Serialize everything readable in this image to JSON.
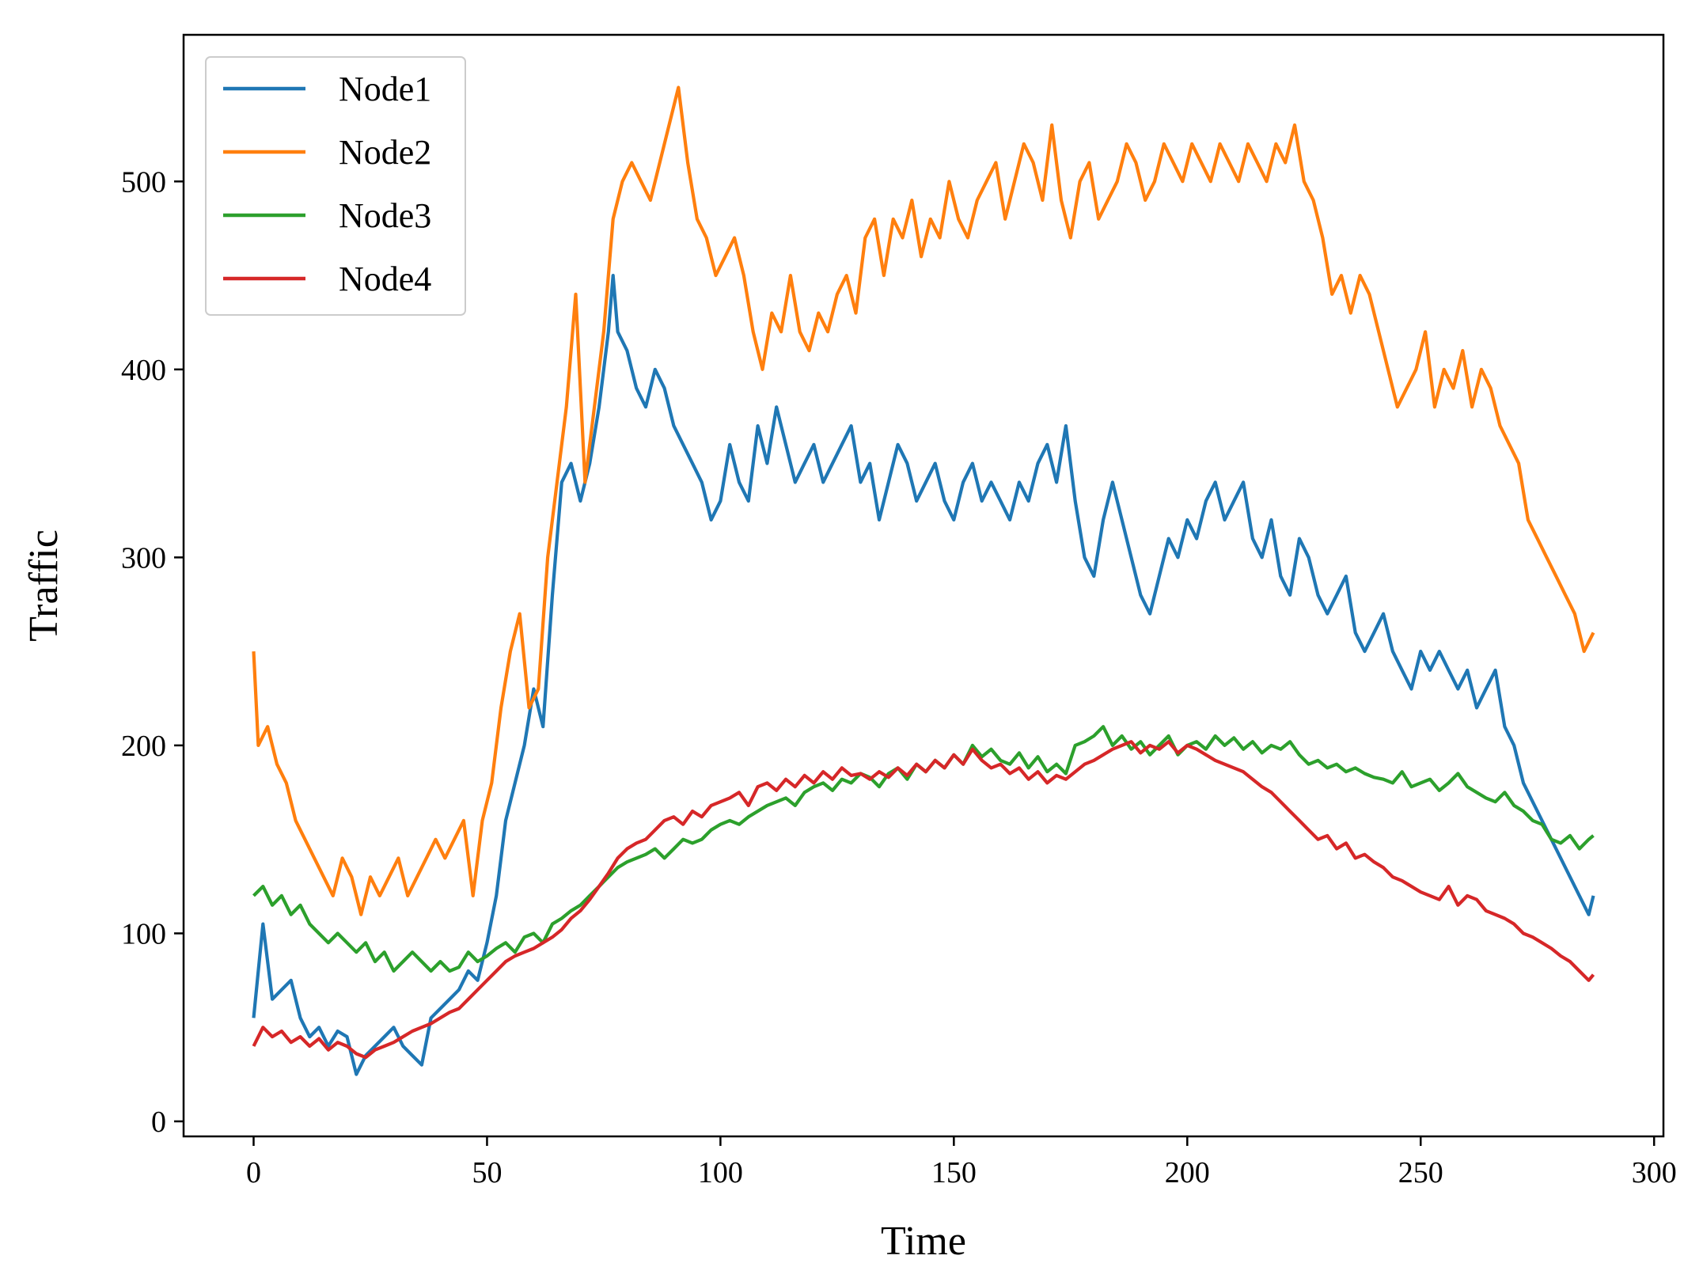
{
  "chart_data": {
    "type": "line",
    "title": "",
    "xlabel": "Time",
    "ylabel": "Traffic",
    "xlim": [
      -15,
      302
    ],
    "ylim": [
      -8,
      578
    ],
    "xticks": [
      0,
      50,
      100,
      150,
      200,
      250,
      300
    ],
    "yticks": [
      0,
      100,
      200,
      300,
      400,
      500
    ],
    "grid": false,
    "legend_position": "top-left",
    "series": [
      {
        "name": "Node1",
        "color": "#1f77b4",
        "x": [
          0,
          2,
          4,
          6,
          8,
          10,
          12,
          14,
          16,
          18,
          20,
          22,
          24,
          26,
          28,
          30,
          32,
          34,
          36,
          38,
          40,
          42,
          44,
          46,
          48,
          50,
          52,
          54,
          56,
          58,
          60,
          62,
          64,
          66,
          68,
          70,
          72,
          74,
          76,
          77,
          78,
          80,
          82,
          84,
          86,
          88,
          90,
          92,
          94,
          96,
          98,
          100,
          102,
          104,
          106,
          108,
          110,
          112,
          114,
          116,
          118,
          120,
          122,
          124,
          126,
          128,
          130,
          132,
          134,
          136,
          138,
          140,
          142,
          144,
          146,
          148,
          150,
          152,
          154,
          156,
          158,
          160,
          162,
          164,
          166,
          168,
          170,
          172,
          174,
          176,
          178,
          180,
          182,
          184,
          186,
          188,
          190,
          192,
          194,
          196,
          198,
          200,
          202,
          204,
          206,
          208,
          210,
          212,
          214,
          216,
          218,
          220,
          222,
          224,
          226,
          228,
          230,
          232,
          234,
          236,
          238,
          240,
          242,
          244,
          246,
          248,
          250,
          252,
          254,
          256,
          258,
          260,
          262,
          264,
          266,
          268,
          270,
          272,
          274,
          276,
          278,
          280,
          282,
          284,
          286,
          287
        ],
        "y": [
          55,
          105,
          65,
          70,
          75,
          55,
          45,
          50,
          40,
          48,
          45,
          25,
          35,
          40,
          45,
          50,
          40,
          35,
          30,
          55,
          60,
          65,
          70,
          80,
          75,
          95,
          120,
          160,
          180,
          200,
          230,
          210,
          280,
          340,
          350,
          330,
          350,
          380,
          420,
          450,
          420,
          410,
          390,
          380,
          400,
          390,
          370,
          360,
          350,
          340,
          320,
          330,
          360,
          340,
          330,
          370,
          350,
          380,
          360,
          340,
          350,
          360,
          340,
          350,
          360,
          370,
          340,
          350,
          320,
          340,
          360,
          350,
          330,
          340,
          350,
          330,
          320,
          340,
          350,
          330,
          340,
          330,
          320,
          340,
          330,
          350,
          360,
          340,
          370,
          330,
          300,
          290,
          320,
          340,
          320,
          300,
          280,
          270,
          290,
          310,
          300,
          320,
          310,
          330,
          340,
          320,
          330,
          340,
          310,
          300,
          320,
          290,
          280,
          310,
          300,
          280,
          270,
          280,
          290,
          260,
          250,
          260,
          270,
          250,
          240,
          230,
          250,
          240,
          250,
          240,
          230,
          240,
          220,
          230,
          240,
          210,
          200,
          180,
          170,
          160,
          150,
          140,
          130,
          120,
          110,
          120
        ]
      },
      {
        "name": "Node2",
        "color": "#ff7f0e",
        "x": [
          0,
          1,
          3,
          5,
          7,
          9,
          11,
          13,
          15,
          17,
          19,
          21,
          23,
          25,
          27,
          29,
          31,
          33,
          35,
          37,
          39,
          41,
          43,
          45,
          47,
          49,
          51,
          53,
          55,
          57,
          59,
          61,
          63,
          65,
          67,
          69,
          71,
          73,
          75,
          77,
          79,
          81,
          83,
          85,
          87,
          89,
          91,
          93,
          95,
          97,
          99,
          101,
          103,
          105,
          107,
          109,
          111,
          113,
          115,
          117,
          119,
          121,
          123,
          125,
          127,
          129,
          131,
          133,
          135,
          137,
          139,
          141,
          143,
          145,
          147,
          149,
          151,
          153,
          155,
          157,
          159,
          161,
          163,
          165,
          167,
          169,
          171,
          173,
          175,
          177,
          179,
          181,
          183,
          185,
          187,
          189,
          191,
          193,
          195,
          197,
          199,
          201,
          203,
          205,
          207,
          209,
          211,
          213,
          215,
          217,
          219,
          221,
          223,
          225,
          227,
          229,
          231,
          233,
          235,
          237,
          239,
          241,
          243,
          245,
          247,
          249,
          251,
          253,
          255,
          257,
          259,
          261,
          263,
          265,
          267,
          269,
          271,
          273,
          275,
          277,
          279,
          281,
          283,
          285,
          287
        ],
        "y": [
          250,
          200,
          210,
          190,
          180,
          160,
          150,
          140,
          130,
          120,
          140,
          130,
          110,
          130,
          120,
          130,
          140,
          120,
          130,
          140,
          150,
          140,
          150,
          160,
          120,
          160,
          180,
          220,
          250,
          270,
          220,
          230,
          300,
          340,
          380,
          440,
          340,
          380,
          420,
          480,
          500,
          510,
          500,
          490,
          510,
          530,
          550,
          510,
          480,
          470,
          450,
          460,
          470,
          450,
          420,
          400,
          430,
          420,
          450,
          420,
          410,
          430,
          420,
          440,
          450,
          430,
          470,
          480,
          450,
          480,
          470,
          490,
          460,
          480,
          470,
          500,
          480,
          470,
          490,
          500,
          510,
          480,
          500,
          520,
          510,
          490,
          530,
          490,
          470,
          500,
          510,
          480,
          490,
          500,
          520,
          510,
          490,
          500,
          520,
          510,
          500,
          520,
          510,
          500,
          520,
          510,
          500,
          520,
          510,
          500,
          520,
          510,
          530,
          500,
          490,
          470,
          440,
          450,
          430,
          450,
          440,
          420,
          400,
          380,
          390,
          400,
          420,
          380,
          400,
          390,
          410,
          380,
          400,
          390,
          370,
          360,
          350,
          320,
          310,
          300,
          290,
          280,
          270,
          250,
          260
        ]
      },
      {
        "name": "Node3",
        "color": "#2ca02c",
        "x": [
          0,
          2,
          4,
          6,
          8,
          10,
          12,
          14,
          16,
          18,
          20,
          22,
          24,
          26,
          28,
          30,
          32,
          34,
          36,
          38,
          40,
          42,
          44,
          46,
          48,
          50,
          52,
          54,
          56,
          58,
          60,
          62,
          64,
          66,
          68,
          70,
          72,
          74,
          76,
          78,
          80,
          82,
          84,
          86,
          88,
          90,
          92,
          94,
          96,
          98,
          100,
          102,
          104,
          106,
          108,
          110,
          112,
          114,
          116,
          118,
          120,
          122,
          124,
          126,
          128,
          130,
          132,
          134,
          136,
          138,
          140,
          142,
          144,
          146,
          148,
          150,
          152,
          154,
          156,
          158,
          160,
          162,
          164,
          166,
          168,
          170,
          172,
          174,
          176,
          178,
          180,
          182,
          184,
          186,
          188,
          190,
          192,
          194,
          196,
          198,
          200,
          202,
          204,
          206,
          208,
          210,
          212,
          214,
          216,
          218,
          220,
          222,
          224,
          226,
          228,
          230,
          232,
          234,
          236,
          238,
          240,
          242,
          244,
          246,
          248,
          250,
          252,
          254,
          256,
          258,
          260,
          262,
          264,
          266,
          268,
          270,
          272,
          274,
          276,
          278,
          280,
          282,
          284,
          286,
          287
        ],
        "y": [
          120,
          125,
          115,
          120,
          110,
          115,
          105,
          100,
          95,
          100,
          95,
          90,
          95,
          85,
          90,
          80,
          85,
          90,
          85,
          80,
          85,
          80,
          82,
          90,
          85,
          88,
          92,
          95,
          90,
          98,
          100,
          95,
          105,
          108,
          112,
          115,
          120,
          125,
          130,
          135,
          138,
          140,
          142,
          145,
          140,
          145,
          150,
          148,
          150,
          155,
          158,
          160,
          158,
          162,
          165,
          168,
          170,
          172,
          168,
          175,
          178,
          180,
          176,
          182,
          180,
          185,
          183,
          178,
          185,
          188,
          182,
          190,
          186,
          192,
          188,
          195,
          190,
          200,
          194,
          198,
          192,
          190,
          196,
          188,
          194,
          186,
          190,
          185,
          200,
          202,
          205,
          210,
          200,
          205,
          198,
          202,
          195,
          200,
          205,
          195,
          200,
          202,
          198,
          205,
          200,
          204,
          198,
          202,
          196,
          200,
          198,
          202,
          195,
          190,
          192,
          188,
          190,
          186,
          188,
          185,
          183,
          182,
          180,
          186,
          178,
          180,
          182,
          176,
          180,
          185,
          178,
          175,
          172,
          170,
          175,
          168,
          165,
          160,
          158,
          150,
          148,
          152,
          145,
          150,
          152
        ]
      },
      {
        "name": "Node4",
        "color": "#d62728",
        "x": [
          0,
          2,
          4,
          6,
          8,
          10,
          12,
          14,
          16,
          18,
          20,
          22,
          24,
          26,
          28,
          30,
          32,
          34,
          36,
          38,
          40,
          42,
          44,
          46,
          48,
          50,
          52,
          54,
          56,
          58,
          60,
          62,
          64,
          66,
          68,
          70,
          72,
          74,
          76,
          78,
          80,
          82,
          84,
          86,
          88,
          90,
          92,
          94,
          96,
          98,
          100,
          102,
          104,
          106,
          108,
          110,
          112,
          114,
          116,
          118,
          120,
          122,
          124,
          126,
          128,
          130,
          132,
          134,
          136,
          138,
          140,
          142,
          144,
          146,
          148,
          150,
          152,
          154,
          156,
          158,
          160,
          162,
          164,
          166,
          168,
          170,
          172,
          174,
          176,
          178,
          180,
          182,
          184,
          186,
          188,
          190,
          192,
          194,
          196,
          198,
          200,
          202,
          204,
          206,
          208,
          210,
          212,
          214,
          216,
          218,
          220,
          222,
          224,
          226,
          228,
          230,
          232,
          234,
          236,
          238,
          240,
          242,
          244,
          246,
          248,
          250,
          252,
          254,
          256,
          258,
          260,
          262,
          264,
          266,
          268,
          270,
          272,
          274,
          276,
          278,
          280,
          282,
          284,
          286,
          287
        ],
        "y": [
          40,
          50,
          45,
          48,
          42,
          45,
          40,
          44,
          38,
          42,
          40,
          36,
          34,
          38,
          40,
          42,
          45,
          48,
          50,
          52,
          55,
          58,
          60,
          65,
          70,
          75,
          80,
          85,
          88,
          90,
          92,
          95,
          98,
          102,
          108,
          112,
          118,
          125,
          132,
          140,
          145,
          148,
          150,
          155,
          160,
          162,
          158,
          165,
          162,
          168,
          170,
          172,
          175,
          168,
          178,
          180,
          176,
          182,
          178,
          184,
          180,
          186,
          182,
          188,
          184,
          185,
          182,
          186,
          183,
          188,
          184,
          190,
          186,
          192,
          188,
          195,
          190,
          198,
          192,
          188,
          190,
          185,
          188,
          182,
          186,
          180,
          184,
          182,
          186,
          190,
          192,
          195,
          198,
          200,
          202,
          196,
          200,
          198,
          202,
          196,
          200,
          198,
          195,
          192,
          190,
          188,
          186,
          182,
          178,
          175,
          170,
          165,
          160,
          155,
          150,
          152,
          145,
          148,
          140,
          142,
          138,
          135,
          130,
          128,
          125,
          122,
          120,
          118,
          125,
          115,
          120,
          118,
          112,
          110,
          108,
          105,
          100,
          98,
          95,
          92,
          88,
          85,
          80,
          75,
          78
        ]
      }
    ]
  }
}
